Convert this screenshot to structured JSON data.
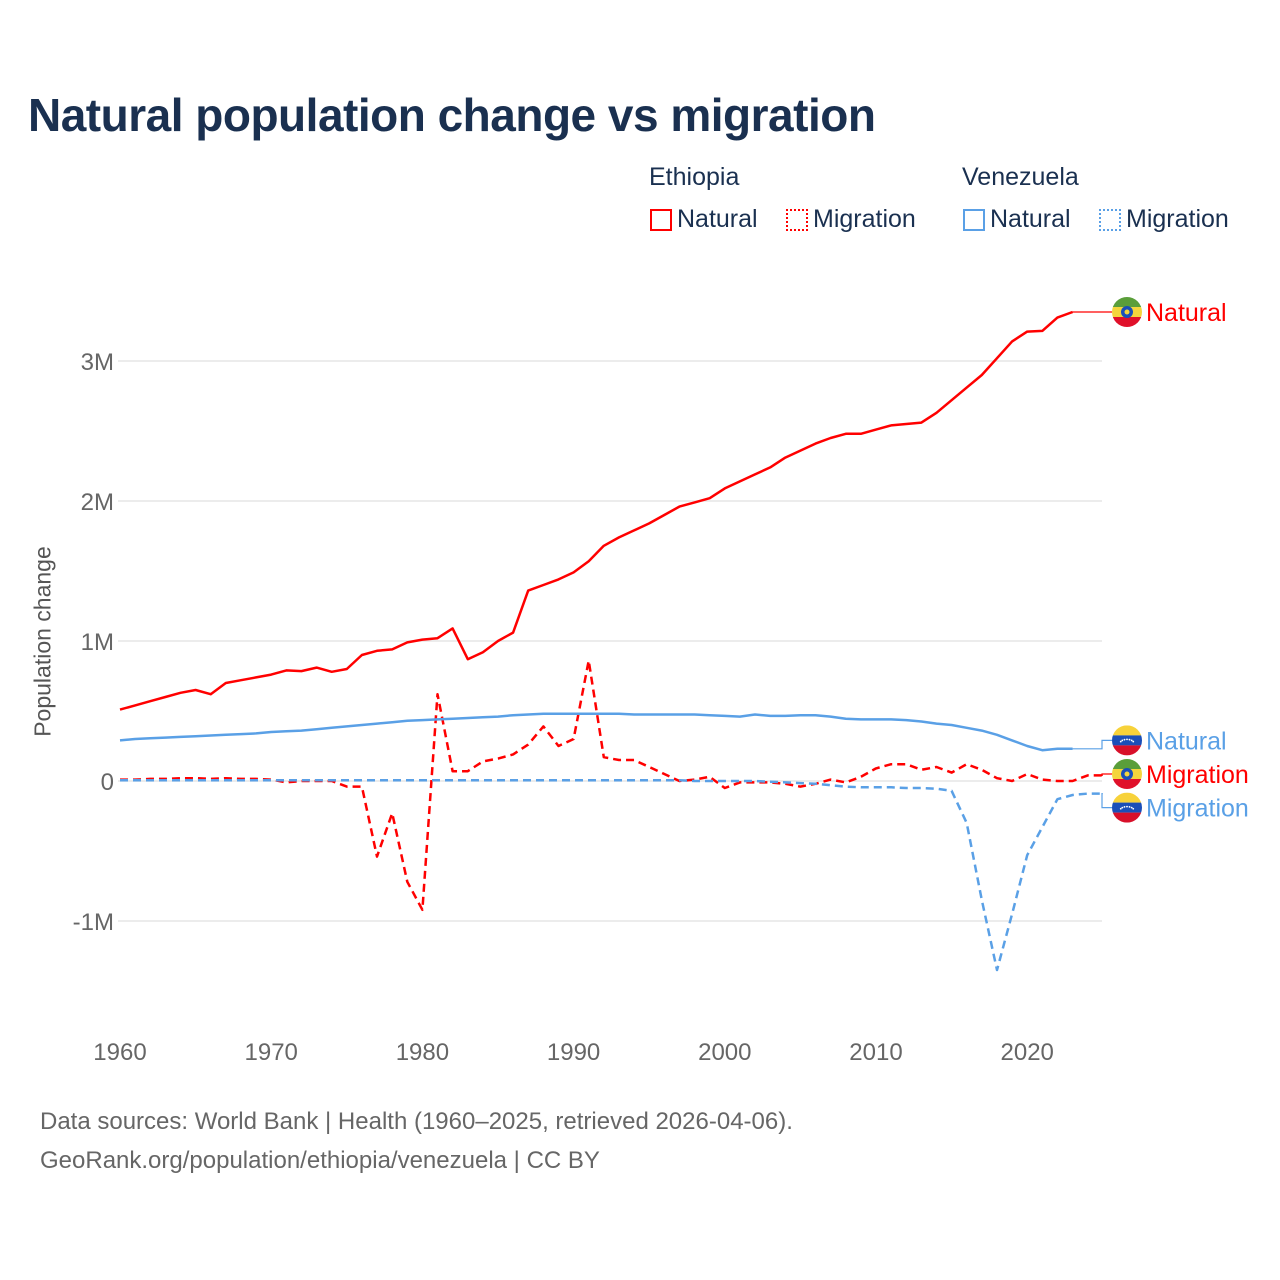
{
  "chart_data": {
    "type": "line",
    "title": "Natural population change vs migration",
    "xlabel": "",
    "ylabel": "Population change",
    "xlim": [
      1960,
      2025
    ],
    "ylim": [
      -1.5,
      3.5
    ],
    "x_ticks": [
      {
        "v": 1960,
        "label": "1960"
      },
      {
        "v": 1970,
        "label": "1970"
      },
      {
        "v": 1980,
        "label": "1980"
      },
      {
        "v": 1990,
        "label": "1990"
      },
      {
        "v": 2000,
        "label": "2000"
      },
      {
        "v": 2010,
        "label": "2010"
      },
      {
        "v": 2020,
        "label": "2020"
      }
    ],
    "y_ticks": [
      {
        "v": -1,
        "label": "-1M"
      },
      {
        "v": 0,
        "label": "0"
      },
      {
        "v": 1,
        "label": "1M"
      },
      {
        "v": 2,
        "label": "2M"
      },
      {
        "v": 3,
        "label": "3M"
      }
    ],
    "y_unit": "millions",
    "grid": true,
    "legend_placement": "top-right",
    "legend_groups": [
      {
        "name": "Ethiopia",
        "items": [
          "Natural",
          "Migration"
        ]
      },
      {
        "name": "Venezuela",
        "items": [
          "Natural",
          "Migration"
        ]
      }
    ],
    "series": [
      {
        "name": "Ethiopia Natural",
        "country": "Ethiopia",
        "kind": "Natural",
        "label": "Natural",
        "color": "#ff0000",
        "dash": false,
        "x_start": 1960,
        "values": [
          0.51,
          0.54,
          0.57,
          0.6,
          0.63,
          0.65,
          0.62,
          0.7,
          0.72,
          0.74,
          0.76,
          0.79,
          0.785,
          0.81,
          0.78,
          0.8,
          0.9,
          0.93,
          0.94,
          0.99,
          1.01,
          1.02,
          1.09,
          0.87,
          0.92,
          1.0,
          1.06,
          1.36,
          1.4,
          1.44,
          1.49,
          1.57,
          1.68,
          1.74,
          1.79,
          1.84,
          1.9,
          1.96,
          1.99,
          2.02,
          2.09,
          2.14,
          2.19,
          2.24,
          2.31,
          2.36,
          2.41,
          2.45,
          2.48,
          2.48,
          2.51,
          2.54,
          2.55,
          2.56,
          2.63,
          2.72,
          2.81,
          2.9,
          3.02,
          3.14,
          3.21,
          3.215,
          3.31,
          3.35
        ]
      },
      {
        "name": "Ethiopia Migration",
        "country": "Ethiopia",
        "kind": "Migration",
        "label": "Migration",
        "color": "#ff0000",
        "dash": true,
        "x_start": 1960,
        "values": [
          0.01,
          0.01,
          0.015,
          0.015,
          0.02,
          0.02,
          0.015,
          0.02,
          0.015,
          0.015,
          0.01,
          -0.01,
          0.0,
          0.0,
          0.0,
          -0.04,
          -0.04,
          -0.54,
          -0.23,
          -0.72,
          -0.92,
          0.62,
          0.07,
          0.07,
          0.14,
          0.16,
          0.19,
          0.26,
          0.39,
          0.25,
          0.3,
          0.86,
          0.17,
          0.15,
          0.15,
          0.1,
          0.05,
          0.0,
          0.01,
          0.03,
          -0.05,
          -0.01,
          -0.01,
          -0.01,
          -0.02,
          -0.04,
          -0.02,
          0.01,
          -0.01,
          0.03,
          0.09,
          0.12,
          0.12,
          0.08,
          0.1,
          0.06,
          0.12,
          0.08,
          0.02,
          0.0,
          0.05,
          0.01,
          0.0,
          0.0,
          0.04,
          0.04
        ]
      },
      {
        "name": "Venezuela Natural",
        "country": "Venezuela",
        "kind": "Natural",
        "label": "Natural",
        "color": "#5aa0e6",
        "dash": false,
        "x_start": 1960,
        "values": [
          0.29,
          0.3,
          0.305,
          0.31,
          0.315,
          0.32,
          0.325,
          0.33,
          0.335,
          0.34,
          0.35,
          0.355,
          0.36,
          0.37,
          0.38,
          0.39,
          0.4,
          0.41,
          0.42,
          0.43,
          0.435,
          0.44,
          0.445,
          0.45,
          0.455,
          0.46,
          0.47,
          0.475,
          0.48,
          0.48,
          0.48,
          0.48,
          0.48,
          0.48,
          0.475,
          0.475,
          0.475,
          0.475,
          0.475,
          0.47,
          0.465,
          0.46,
          0.475,
          0.465,
          0.465,
          0.47,
          0.47,
          0.46,
          0.445,
          0.44,
          0.44,
          0.44,
          0.435,
          0.425,
          0.41,
          0.4,
          0.38,
          0.36,
          0.33,
          0.29,
          0.25,
          0.22,
          0.23,
          0.23
        ]
      },
      {
        "name": "Venezuela Migration",
        "country": "Venezuela",
        "kind": "Migration",
        "label": "Migration",
        "color": "#5aa0e6",
        "dash": true,
        "x_start": 1960,
        "values": [
          0.005,
          0.005,
          0.005,
          0.005,
          0.005,
          0.005,
          0.005,
          0.005,
          0.005,
          0.005,
          0.005,
          0.005,
          0.005,
          0.005,
          0.005,
          0.005,
          0.005,
          0.005,
          0.005,
          0.005,
          0.005,
          0.005,
          0.005,
          0.005,
          0.005,
          0.005,
          0.005,
          0.005,
          0.005,
          0.005,
          0.005,
          0.005,
          0.005,
          0.005,
          0.005,
          0.005,
          0.005,
          0.005,
          0.0,
          0.0,
          0.0,
          0.0,
          0.0,
          -0.005,
          -0.01,
          -0.015,
          -0.02,
          -0.03,
          -0.04,
          -0.045,
          -0.045,
          -0.045,
          -0.05,
          -0.05,
          -0.055,
          -0.07,
          -0.3,
          -0.85,
          -1.35,
          -0.95,
          -0.53,
          -0.33,
          -0.13,
          -0.1,
          -0.09,
          -0.09
        ]
      }
    ],
    "end_labels": [
      {
        "series": 0,
        "text": "Natural",
        "flag": "ethiopia",
        "label_value": 3.35
      },
      {
        "series": 2,
        "text": "Natural",
        "flag": "venezuela",
        "label_value": 0.29
      },
      {
        "series": 1,
        "text": "Migration",
        "flag": "ethiopia",
        "label_value": 0.05
      },
      {
        "series": 3,
        "text": "Migration",
        "flag": "venezuela",
        "label_value": -0.19
      }
    ]
  },
  "legend": {
    "ethiopia": {
      "group": "Ethiopia",
      "natural": "Natural",
      "migration": "Migration",
      "color": "#ff0000"
    },
    "venezuela": {
      "group": "Venezuela",
      "natural": "Natural",
      "migration": "Migration",
      "color": "#5aa0e6"
    }
  },
  "footer": {
    "sources": "Data sources: World Bank | Health (1960–2025, retrieved 2026-04-06).",
    "link": "GeoRank.org/population/ethiopia/venezuela | CC BY"
  }
}
